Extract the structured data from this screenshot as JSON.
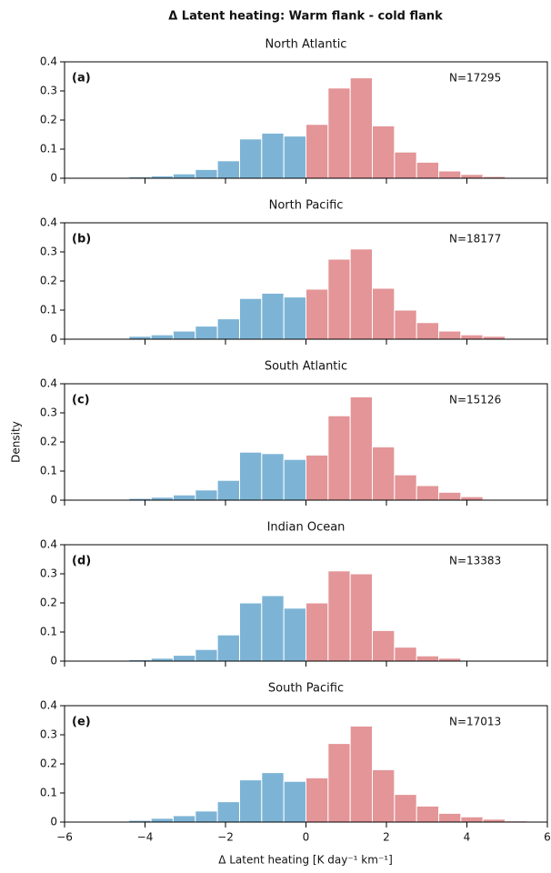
{
  "figure": {
    "title": "Δ Latent heating: Warm flank - cold flank",
    "ylabel": "Density",
    "xlabel": "Δ Latent heating [K day⁻¹ km⁻¹]"
  },
  "chart_data": [
    {
      "type": "histogram",
      "title": "North Atlantic",
      "panel_label": "(a)",
      "annotation": "N=17295",
      "bins": [
        -5.5,
        -4.95,
        -4.4,
        -3.85,
        -3.3,
        -2.75,
        -2.2,
        -1.65,
        -1.1,
        -0.55,
        0,
        0.55,
        1.1,
        1.65,
        2.2,
        2.75,
        3.3,
        3.85,
        4.4,
        4.95,
        5.5
      ],
      "values": [
        0,
        0,
        0.005,
        0.008,
        0.015,
        0.03,
        0.06,
        0.135,
        0.155,
        0.145,
        0.185,
        0.31,
        0.345,
        0.18,
        0.09,
        0.055,
        0.025,
        0.013,
        0.006,
        0.002
      ],
      "color_below_zero": "#7db4d6",
      "color_above_zero": "#e39597",
      "xlim": [
        -6,
        6
      ],
      "xticks": [
        {
          "value": -6,
          "label": "−6"
        },
        {
          "value": -4,
          "label": "−4"
        },
        {
          "value": -2,
          "label": "−2"
        },
        0,
        2,
        4,
        6
      ],
      "ylim": [
        0,
        0.4
      ],
      "yticks": [
        0,
        0.1,
        0.2,
        0.3,
        0.4
      ]
    },
    {
      "type": "histogram",
      "title": "North Pacific",
      "panel_label": "(b)",
      "annotation": "N=18177",
      "bins": [
        -5.5,
        -4.95,
        -4.4,
        -3.85,
        -3.3,
        -2.75,
        -2.2,
        -1.65,
        -1.1,
        -0.55,
        0,
        0.55,
        1.1,
        1.65,
        2.2,
        2.75,
        3.3,
        3.85,
        4.4,
        4.95,
        5.5
      ],
      "values": [
        0,
        0.003,
        0.01,
        0.015,
        0.028,
        0.045,
        0.07,
        0.14,
        0.158,
        0.145,
        0.172,
        0.275,
        0.31,
        0.175,
        0.1,
        0.057,
        0.028,
        0.015,
        0.01,
        0.003
      ],
      "color_below_zero": "#7db4d6",
      "color_above_zero": "#e39597",
      "xlim": [
        -6,
        6
      ],
      "xticks": [
        {
          "value": -6,
          "label": "−6"
        },
        {
          "value": -4,
          "label": "−4"
        },
        {
          "value": -2,
          "label": "−2"
        },
        0,
        2,
        4,
        6
      ],
      "ylim": [
        0,
        0.4
      ],
      "yticks": [
        0,
        0.1,
        0.2,
        0.3,
        0.4
      ]
    },
    {
      "type": "histogram",
      "title": "South Atlantic",
      "panel_label": "(c)",
      "annotation": "N=15126",
      "bins": [
        -5.5,
        -4.95,
        -4.4,
        -3.85,
        -3.3,
        -2.75,
        -2.2,
        -1.65,
        -1.1,
        -0.55,
        0,
        0.55,
        1.1,
        1.65,
        2.2,
        2.75,
        3.3,
        3.85,
        4.4,
        4.95,
        5.5
      ],
      "values": [
        0,
        0.002,
        0.006,
        0.01,
        0.018,
        0.035,
        0.068,
        0.165,
        0.16,
        0.14,
        0.155,
        0.29,
        0.355,
        0.183,
        0.087,
        0.05,
        0.027,
        0.012,
        0.003,
        0
      ],
      "color_below_zero": "#7db4d6",
      "color_above_zero": "#e39597",
      "xlim": [
        -6,
        6
      ],
      "xticks": [
        {
          "value": -6,
          "label": "−6"
        },
        {
          "value": -4,
          "label": "−4"
        },
        {
          "value": -2,
          "label": "−2"
        },
        0,
        2,
        4,
        6
      ],
      "ylim": [
        0,
        0.4
      ],
      "yticks": [
        0,
        0.1,
        0.2,
        0.3,
        0.4
      ]
    },
    {
      "type": "histogram",
      "title": "Indian Ocean",
      "panel_label": "(d)",
      "annotation": "N=13383",
      "bins": [
        -5.5,
        -4.95,
        -4.4,
        -3.85,
        -3.3,
        -2.75,
        -2.2,
        -1.65,
        -1.1,
        -0.55,
        0,
        0.55,
        1.1,
        1.65,
        2.2,
        2.75,
        3.3,
        3.85,
        4.4,
        4.95,
        5.5
      ],
      "values": [
        0,
        0,
        0.005,
        0.01,
        0.02,
        0.04,
        0.09,
        0.2,
        0.225,
        0.182,
        0.2,
        0.31,
        0.3,
        0.105,
        0.048,
        0.018,
        0.01,
        0.002,
        0,
        0
      ],
      "color_below_zero": "#7db4d6",
      "color_above_zero": "#e39597",
      "xlim": [
        -6,
        6
      ],
      "xticks": [
        {
          "value": -6,
          "label": "−6"
        },
        {
          "value": -4,
          "label": "−4"
        },
        {
          "value": -2,
          "label": "−2"
        },
        0,
        2,
        4,
        6
      ],
      "ylim": [
        0,
        0.4
      ],
      "yticks": [
        0,
        0.1,
        0.2,
        0.3,
        0.4
      ]
    },
    {
      "type": "histogram",
      "title": "South Pacific",
      "panel_label": "(e)",
      "annotation": "N=17013",
      "bins": [
        -5.5,
        -4.95,
        -4.4,
        -3.85,
        -3.3,
        -2.75,
        -2.2,
        -1.65,
        -1.1,
        -0.55,
        0,
        0.55,
        1.1,
        1.65,
        2.2,
        2.75,
        3.3,
        3.85,
        4.4,
        4.95,
        5.5
      ],
      "values": [
        0,
        0.002,
        0.006,
        0.013,
        0.022,
        0.038,
        0.07,
        0.145,
        0.17,
        0.14,
        0.152,
        0.27,
        0.33,
        0.18,
        0.095,
        0.055,
        0.03,
        0.018,
        0.01,
        0.004
      ],
      "color_below_zero": "#7db4d6",
      "color_above_zero": "#e39597",
      "xlim": [
        -6,
        6
      ],
      "xticks": [
        {
          "value": -6,
          "label": "−6"
        },
        {
          "value": -4,
          "label": "−4"
        },
        {
          "value": -2,
          "label": "−2"
        },
        0,
        2,
        4,
        6
      ],
      "ylim": [
        0,
        0.4
      ],
      "yticks": [
        0,
        0.1,
        0.2,
        0.3,
        0.4
      ]
    }
  ]
}
